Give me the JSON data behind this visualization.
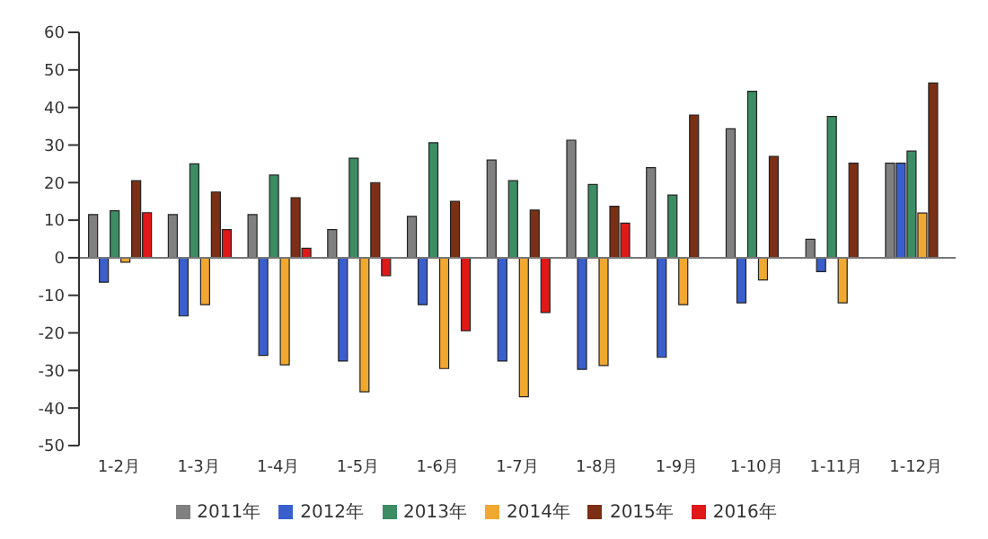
{
  "chart_data": {
    "type": "bar",
    "categories": [
      "1-2月",
      "1-3月",
      "1-4月",
      "1-5月",
      "1-6月",
      "1-7月",
      "1-8月",
      "1-9月",
      "1-10月",
      "1-11月",
      "1-12月"
    ],
    "series": [
      {
        "name": "2011年",
        "color": "#808080",
        "values": [
          11.5,
          11.5,
          11.5,
          7.5,
          11,
          26,
          31.3,
          24,
          34.3,
          4.9,
          25.2
        ]
      },
      {
        "name": "2012年",
        "color": "#3a5fcd",
        "values": [
          -6.5,
          -15.5,
          -26,
          -27.5,
          -12.5,
          -27.5,
          -29.7,
          -26.5,
          -12,
          -3.7,
          25.2
        ]
      },
      {
        "name": "2013年",
        "color": "#3c8c64",
        "values": [
          12.5,
          25,
          22,
          26.5,
          30.6,
          20.5,
          19.5,
          16.7,
          44.3,
          37.6,
          28.4
        ]
      },
      {
        "name": "2014年",
        "color": "#f0a830",
        "values": [
          -1.2,
          -12.5,
          -28.5,
          -35.7,
          -29.5,
          -37,
          -28.7,
          -12.5,
          -5.9,
          -12,
          11.9
        ]
      },
      {
        "name": "2015年",
        "color": "#7b2f14",
        "values": [
          20.5,
          17.5,
          16,
          20,
          15,
          12.7,
          13.7,
          38,
          27,
          25.2,
          46.5
        ]
      },
      {
        "name": "2016年",
        "color": "#e01818",
        "values": [
          12,
          7.5,
          2.5,
          -4.8,
          -19.4,
          -14.6,
          9.2,
          null,
          null,
          null,
          null
        ]
      }
    ],
    "ylim": [
      -50,
      60
    ],
    "yticks": [
      -50,
      -40,
      -30,
      -20,
      -10,
      0,
      10,
      20,
      30,
      40,
      50,
      60
    ],
    "legend": "bottom"
  }
}
